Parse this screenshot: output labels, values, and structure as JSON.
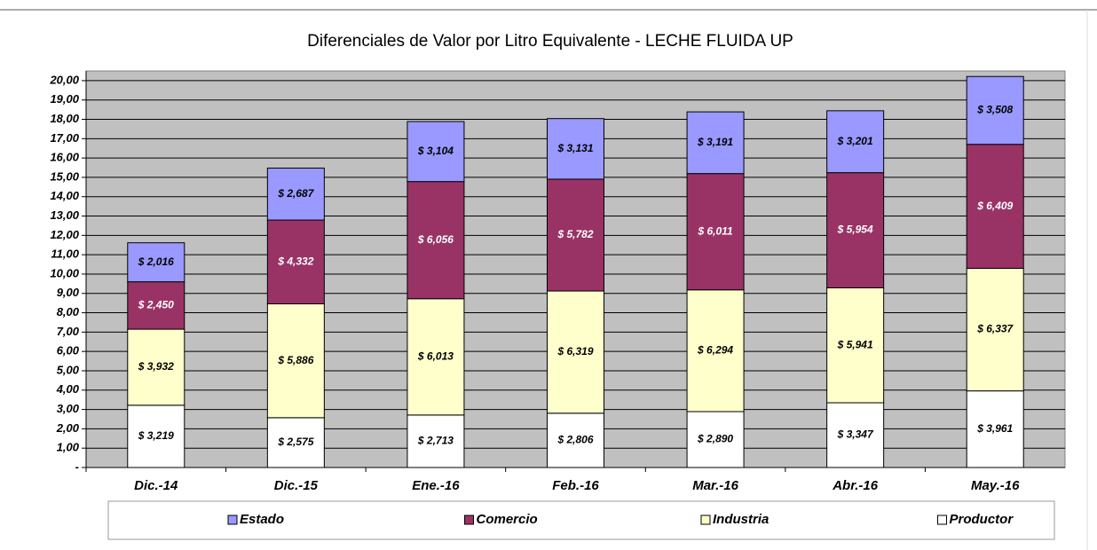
{
  "chart_data": {
    "type": "stacked_bar",
    "title": "Diferenciales de Valor por Litro Equivalente - LECHE FLUIDA UP",
    "categories": [
      "Dic.-14",
      "Dic.-15",
      "Ene.-16",
      "Feb.-16",
      "Mar.-16",
      "Abr.-16",
      "May.-16"
    ],
    "series": [
      {
        "name": "Productor",
        "color": "#ffffff",
        "label_color": "#000000",
        "values": [
          3.219,
          2.575,
          2.713,
          2.806,
          2.89,
          3.347,
          3.961
        ],
        "value_labels": [
          "$ 3,219",
          "$ 2,575",
          "$ 2,713",
          "$ 2,806",
          "$ 2,890",
          "$ 3,347",
          "$ 3,961"
        ]
      },
      {
        "name": "Industria",
        "color": "#ffffcc",
        "label_color": "#000000",
        "values": [
          3.932,
          5.886,
          6.013,
          6.319,
          6.294,
          5.941,
          6.337
        ],
        "value_labels": [
          "$ 3,932",
          "$ 5,886",
          "$ 6,013",
          "$ 6,319",
          "$ 6,294",
          "$ 5,941",
          "$ 6,337"
        ]
      },
      {
        "name": "Comercio",
        "color": "#993366",
        "label_color": "#ffffff",
        "values": [
          2.45,
          4.332,
          6.056,
          5.782,
          6.011,
          5.954,
          6.409
        ],
        "value_labels": [
          "$ 2,450",
          "$ 4,332",
          "$ 6,056",
          "$ 5,782",
          "$ 6,011",
          "$ 5,954",
          "$ 6,409"
        ]
      },
      {
        "name": "Estado",
        "color": "#9999ff",
        "label_color": "#000000",
        "values": [
          2.016,
          2.687,
          3.104,
          3.131,
          3.191,
          3.201,
          3.508
        ],
        "value_labels": [
          "$ 2,016",
          "$ 2,687",
          "$ 3,104",
          "$ 3,131",
          "$ 3,191",
          "$ 3,201",
          "$ 3,508"
        ]
      }
    ],
    "ylim": [
      0,
      20.5
    ],
    "yticks": [
      {
        "value": 0,
        "label": "-"
      },
      {
        "value": 1,
        "label": "1,00"
      },
      {
        "value": 2,
        "label": "2,00"
      },
      {
        "value": 3,
        "label": "3,00"
      },
      {
        "value": 4,
        "label": "4,00"
      },
      {
        "value": 5,
        "label": "5,00"
      },
      {
        "value": 6,
        "label": "6,00"
      },
      {
        "value": 7,
        "label": "7,00"
      },
      {
        "value": 8,
        "label": "8,00"
      },
      {
        "value": 9,
        "label": "9,00"
      },
      {
        "value": 10,
        "label": "10,00"
      },
      {
        "value": 11,
        "label": "11,00"
      },
      {
        "value": 12,
        "label": "12,00"
      },
      {
        "value": 13,
        "label": "13,00"
      },
      {
        "value": 14,
        "label": "14,00"
      },
      {
        "value": 15,
        "label": "15,00"
      },
      {
        "value": 16,
        "label": "16,00"
      },
      {
        "value": 17,
        "label": "17,00"
      },
      {
        "value": 18,
        "label": "18,00"
      },
      {
        "value": 19,
        "label": "19,00"
      },
      {
        "value": 20,
        "label": "20,00"
      }
    ],
    "grid": true,
    "plot_background": "#c0c0c0",
    "legend": "bottom"
  }
}
